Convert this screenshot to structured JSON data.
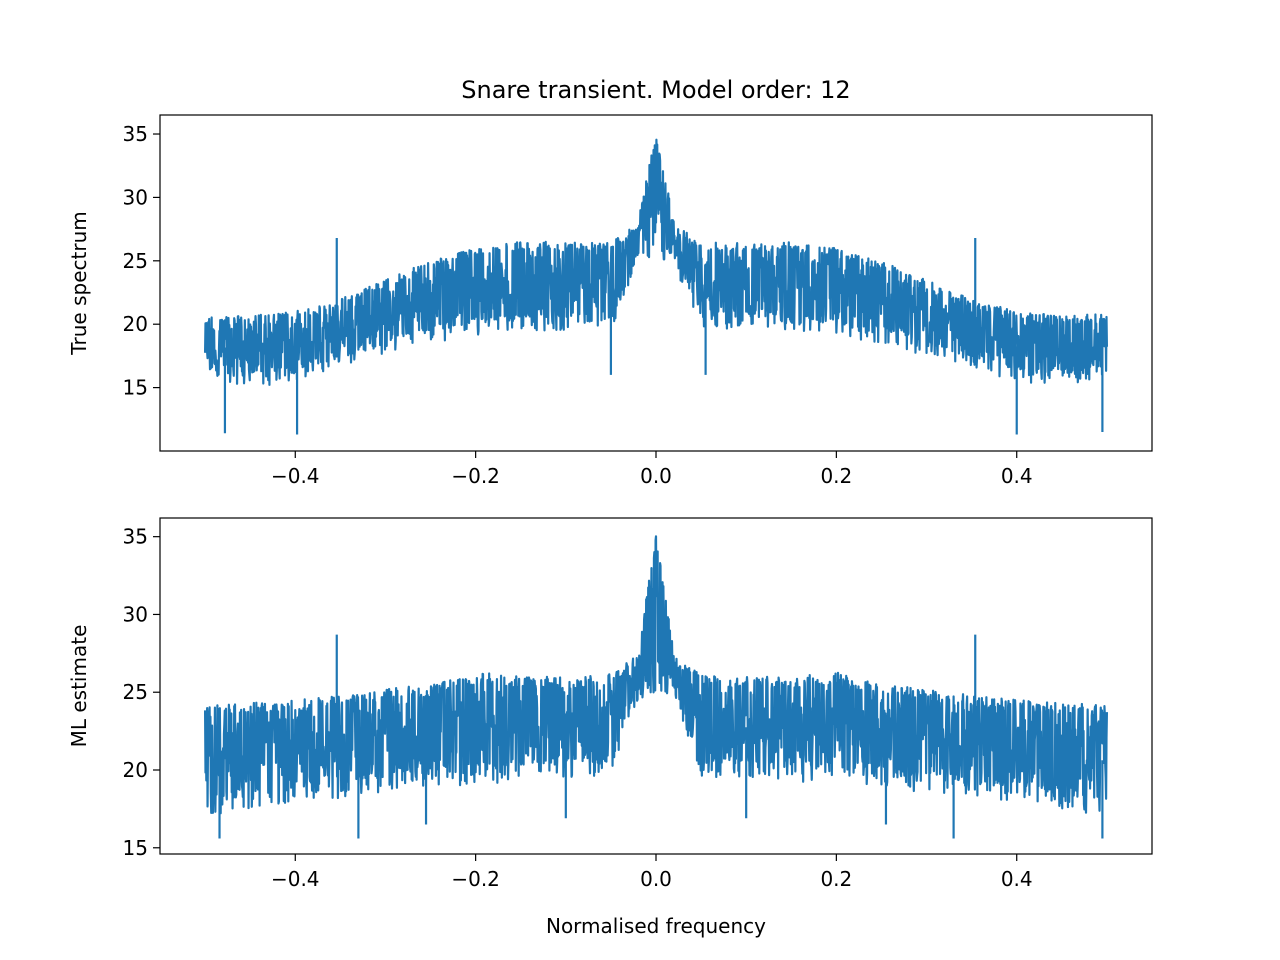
{
  "figure": {
    "title": "Snare transient. Model order: 12",
    "line_color": "#1f77b4"
  },
  "chart_data": [
    {
      "type": "line",
      "title": "Snare transient. Model order: 12",
      "xlabel": "",
      "ylabel": "True spectrum",
      "xlim": [
        -0.55,
        0.55
      ],
      "ylim": [
        10,
        36.5
      ],
      "xticks": [
        -0.4,
        -0.2,
        0.0,
        0.2,
        0.4
      ],
      "xtick_labels": [
        "−0.4",
        "−0.2",
        "0.0",
        "0.2",
        "0.4"
      ],
      "yticks": [
        15,
        20,
        25,
        30,
        35
      ],
      "ytick_labels": [
        "15",
        "20",
        "25",
        "30",
        "35"
      ],
      "grid": false,
      "series": [
        {
          "x": [
            -0.5,
            -0.45,
            -0.4,
            -0.35,
            -0.3,
            -0.25,
            -0.2,
            -0.15,
            -0.1,
            -0.05,
            -0.02,
            0.0,
            0.02,
            0.05,
            0.1,
            0.15,
            0.2,
            0.25,
            0.3,
            0.35,
            0.4,
            0.45,
            0.5
          ],
          "upper": [
            20.8,
            20.7,
            21.0,
            22.0,
            23.5,
            25.0,
            26.0,
            26.5,
            26.5,
            26.5,
            28.0,
            35.3,
            28.0,
            26.5,
            26.5,
            26.5,
            26.0,
            25.0,
            23.5,
            22.0,
            21.0,
            20.7,
            20.8
          ],
          "lower": [
            16.0,
            15.0,
            15.5,
            16.5,
            17.5,
            18.5,
            19.0,
            19.5,
            19.5,
            19.5,
            24.5,
            25.5,
            24.5,
            19.5,
            19.5,
            19.5,
            19.0,
            18.5,
            17.5,
            16.5,
            15.5,
            15.0,
            16.0
          ],
          "spikes": [
            {
              "x": -0.354,
              "y": 26.8
            },
            {
              "x": 0.354,
              "y": 26.8
            }
          ],
          "dips": [
            {
              "x": -0.478,
              "y": 11.4
            },
            {
              "x": -0.398,
              "y": 11.3
            },
            {
              "x": 0.4,
              "y": 11.3
            },
            {
              "x": 0.495,
              "y": 11.5
            },
            {
              "x": -0.05,
              "y": 16.0
            },
            {
              "x": 0.055,
              "y": 16.0
            }
          ]
        }
      ]
    },
    {
      "type": "line",
      "xlabel": "Normalised frequency",
      "ylabel": "ML estimate",
      "xlim": [
        -0.55,
        0.55
      ],
      "ylim": [
        14.6,
        36.2
      ],
      "xticks": [
        -0.4,
        -0.2,
        0.0,
        0.2,
        0.4
      ],
      "xtick_labels": [
        "−0.4",
        "−0.2",
        "0.0",
        "0.2",
        "0.4"
      ],
      "yticks": [
        15,
        20,
        25,
        30,
        35
      ],
      "ytick_labels": [
        "15",
        "20",
        "25",
        "30",
        "35"
      ],
      "grid": false,
      "series": [
        {
          "x": [
            -0.5,
            -0.45,
            -0.4,
            -0.35,
            -0.3,
            -0.25,
            -0.2,
            -0.15,
            -0.1,
            -0.05,
            -0.02,
            0.0,
            0.02,
            0.05,
            0.1,
            0.15,
            0.2,
            0.25,
            0.3,
            0.35,
            0.4,
            0.45,
            0.5
          ],
          "upper": [
            24.2,
            24.3,
            24.5,
            24.8,
            25.2,
            25.5,
            26.3,
            26.0,
            26.0,
            26.2,
            27.5,
            35.3,
            27.5,
            26.2,
            26.0,
            26.0,
            26.3,
            25.5,
            25.2,
            24.8,
            24.5,
            24.3,
            24.2
          ],
          "lower": [
            17.0,
            17.5,
            18.0,
            18.2,
            18.5,
            19.0,
            19.0,
            19.3,
            19.5,
            19.5,
            24.5,
            25.0,
            24.5,
            19.5,
            19.5,
            19.3,
            19.0,
            19.0,
            18.5,
            18.2,
            18.0,
            17.5,
            17.0
          ],
          "spikes": [
            {
              "x": -0.354,
              "y": 28.7
            },
            {
              "x": 0.354,
              "y": 28.7
            }
          ],
          "dips": [
            {
              "x": -0.484,
              "y": 15.6
            },
            {
              "x": -0.33,
              "y": 15.6
            },
            {
              "x": 0.33,
              "y": 15.6
            },
            {
              "x": 0.495,
              "y": 15.6
            },
            {
              "x": -0.255,
              "y": 16.5
            },
            {
              "x": 0.255,
              "y": 16.5
            },
            {
              "x": -0.1,
              "y": 16.9
            },
            {
              "x": 0.1,
              "y": 16.9
            }
          ]
        }
      ]
    }
  ]
}
